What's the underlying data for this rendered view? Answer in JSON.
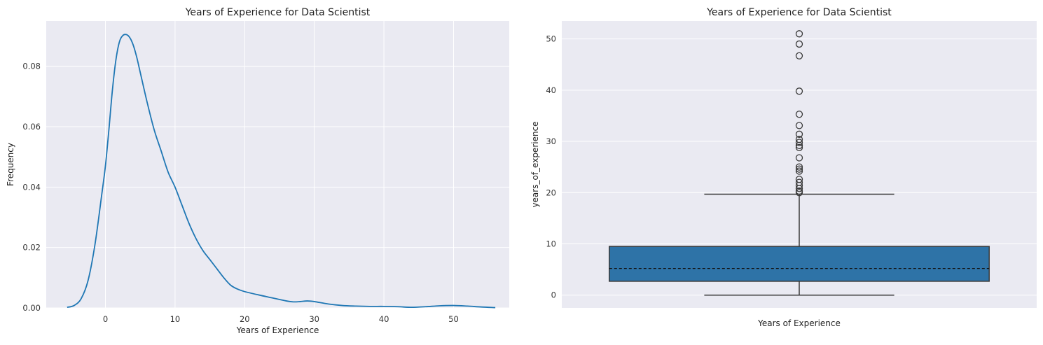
{
  "chart_data": [
    {
      "type": "line",
      "title": "Years of Experience for Data Scientist",
      "xlabel": "Years of Experience",
      "ylabel": "Frequency",
      "xlim": [
        -8.5,
        58
      ],
      "ylim": [
        0,
        0.095
      ],
      "xticks": [
        0,
        10,
        20,
        30,
        40,
        50
      ],
      "yticks": [
        0.0,
        0.02,
        0.04,
        0.06,
        0.08
      ],
      "ytick_labels": [
        "0.00",
        "0.02",
        "0.04",
        "0.06",
        "0.08"
      ],
      "grid": true,
      "series": [
        {
          "color": "#1f77b4",
          "x": [
            -5.5,
            -4.5,
            -3.5,
            -2.5,
            -1.5,
            -0.5,
            0,
            0.5,
            1,
            1.5,
            2,
            2.5,
            3,
            3.5,
            4,
            4.5,
            5,
            6,
            7,
            8,
            9,
            10,
            11,
            12,
            13,
            14,
            15,
            16,
            17,
            18,
            19,
            20,
            22,
            24,
            26,
            27,
            28,
            29,
            30,
            32,
            34,
            36,
            38,
            40,
            42,
            44,
            46,
            48,
            50,
            52,
            54,
            56
          ],
          "y": [
            0.0002,
            0.0008,
            0.003,
            0.009,
            0.021,
            0.038,
            0.047,
            0.059,
            0.072,
            0.082,
            0.088,
            0.0902,
            0.0905,
            0.0895,
            0.087,
            0.083,
            0.078,
            0.068,
            0.059,
            0.052,
            0.045,
            0.04,
            0.034,
            0.028,
            0.023,
            0.019,
            0.016,
            0.013,
            0.01,
            0.0075,
            0.0062,
            0.0054,
            0.0043,
            0.0033,
            0.0023,
            0.002,
            0.0021,
            0.0023,
            0.0021,
            0.0013,
            0.0008,
            0.0006,
            0.0005,
            0.0005,
            0.0004,
            0.0002,
            0.0004,
            0.0007,
            0.0008,
            0.0006,
            0.0003,
            0.0001
          ]
        }
      ]
    },
    {
      "type": "box",
      "title": "Years of Experience for Data Scientist",
      "xlabel": "Years of Experience",
      "ylabel": "years_of_experience",
      "ylim": [
        -2.5,
        53.5
      ],
      "yticks": [
        0,
        10,
        20,
        30,
        40,
        50
      ],
      "grid": true,
      "box": {
        "color": "#2e73a7",
        "min": 0,
        "q1": 2.7,
        "median": 5.2,
        "q3": 9.5,
        "max": 19.7,
        "outliers": [
          20,
          20.3,
          20.8,
          21.4,
          22.0,
          22.6,
          24.2,
          24.6,
          25.0,
          26.8,
          28.8,
          29.2,
          29.8,
          30.4,
          31.4,
          33.1,
          35.3,
          39.8,
          46.7,
          49.0,
          51.0
        ]
      }
    }
  ]
}
